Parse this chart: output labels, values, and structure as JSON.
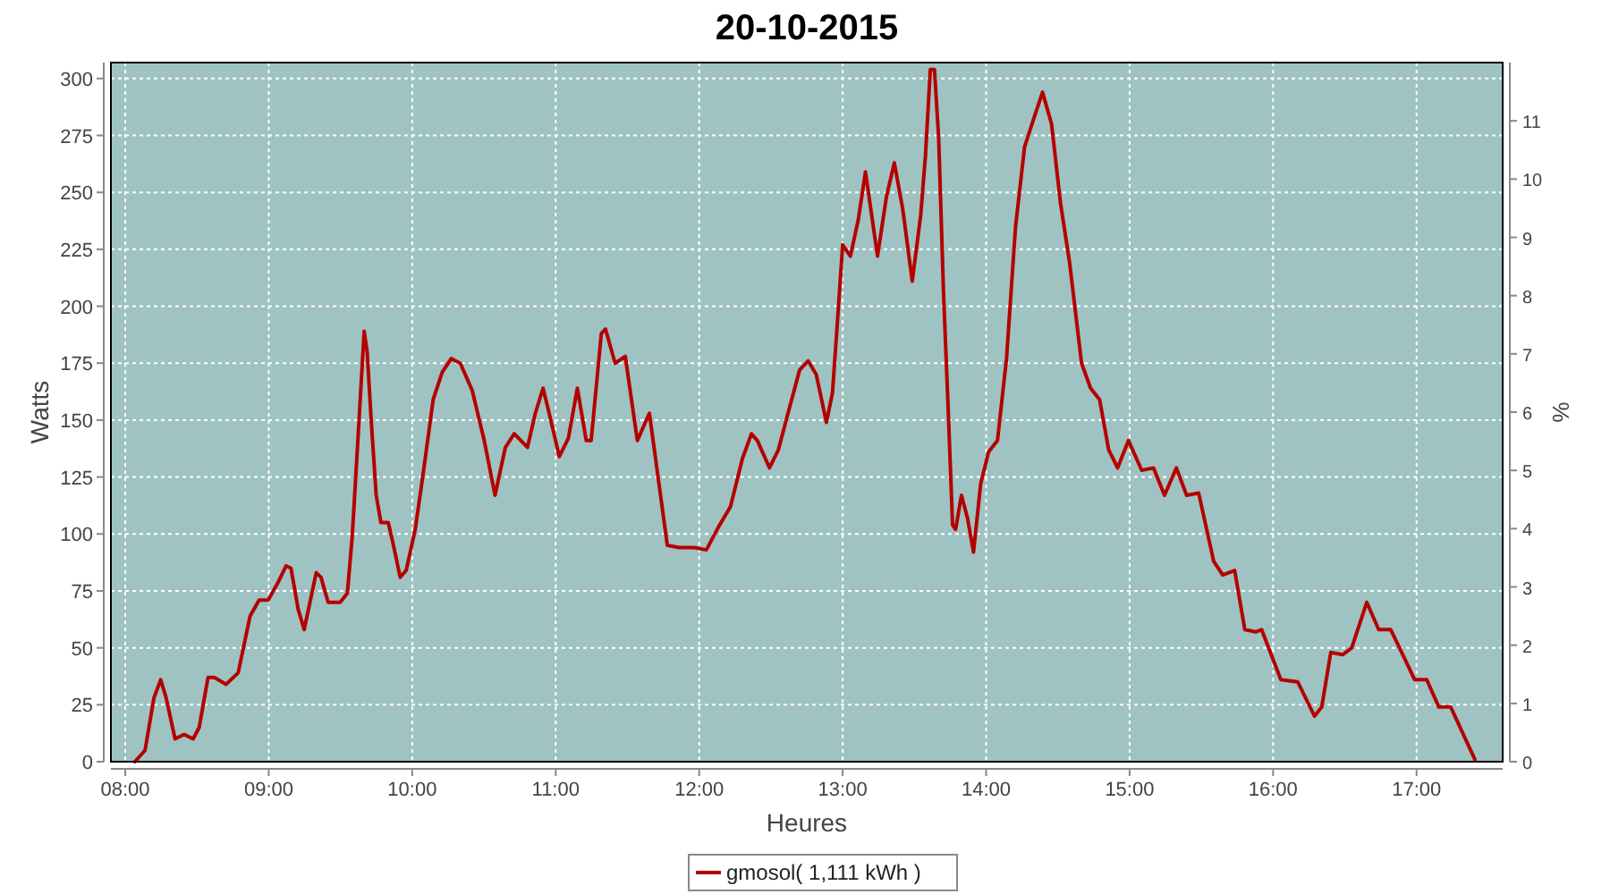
{
  "chart_data": {
    "type": "line",
    "title": "20-10-2015",
    "xlabel": "Heures",
    "ylabel": "Watts",
    "y2label": "%",
    "xlim": [
      7.9,
      17.6
    ],
    "xticks": [
      {
        "value": 8,
        "label": "08:00"
      },
      {
        "value": 9,
        "label": "09:00"
      },
      {
        "value": 10,
        "label": "10:00"
      },
      {
        "value": 11,
        "label": "11:00"
      },
      {
        "value": 12,
        "label": "12:00"
      },
      {
        "value": 13,
        "label": "13:00"
      },
      {
        "value": 14,
        "label": "14:00"
      },
      {
        "value": 15,
        "label": "15:00"
      },
      {
        "value": 16,
        "label": "16:00"
      },
      {
        "value": 17,
        "label": "17:00"
      }
    ],
    "ylim": [
      0,
      307
    ],
    "yticks": [
      0,
      25,
      50,
      75,
      100,
      125,
      150,
      175,
      200,
      225,
      250,
      275,
      300
    ],
    "y2lim": [
      0,
      12
    ],
    "y2ticks": [
      0,
      1,
      2,
      3,
      4,
      5,
      6,
      7,
      8,
      9,
      10,
      11
    ],
    "grid": true,
    "legend": "bottom",
    "line_style": "solid",
    "series": [
      {
        "name": "gmosol( 1,111 kWh )",
        "color": "#b50000",
        "x": [
          8.067,
          8.138,
          8.2,
          8.247,
          8.285,
          8.347,
          8.41,
          8.473,
          8.515,
          8.577,
          8.62,
          8.703,
          8.787,
          8.87,
          8.933,
          8.996,
          9.059,
          9.121,
          9.155,
          9.205,
          9.247,
          9.331,
          9.364,
          9.414,
          9.498,
          9.548,
          9.582,
          9.623,
          9.665,
          9.686,
          9.715,
          9.749,
          9.782,
          9.833,
          9.866,
          9.916,
          9.958,
          10.021,
          10.084,
          10.146,
          10.209,
          10.272,
          10.335,
          10.418,
          10.502,
          10.577,
          10.649,
          10.711,
          10.803,
          10.858,
          10.912,
          10.962,
          11.025,
          11.088,
          11.151,
          11.213,
          11.247,
          11.318,
          11.347,
          11.414,
          11.485,
          11.569,
          11.653,
          11.707,
          11.778,
          11.862,
          11.967,
          12.05,
          12.134,
          12.218,
          12.301,
          12.364,
          12.406,
          12.49,
          12.552,
          12.615,
          12.7,
          12.76,
          12.816,
          12.887,
          12.929,
          12.958,
          13.0,
          13.054,
          13.109,
          13.159,
          13.243,
          13.305,
          13.36,
          13.418,
          13.485,
          13.544,
          13.577,
          13.611,
          13.64,
          13.669,
          13.703,
          13.736,
          13.766,
          13.787,
          13.828,
          13.87,
          13.912,
          13.962,
          14.017,
          14.079,
          14.142,
          14.205,
          14.268,
          14.33,
          14.393,
          14.456,
          14.519,
          14.582,
          14.665,
          14.728,
          14.791,
          14.854,
          14.916,
          14.992,
          15.084,
          15.167,
          15.243,
          15.326,
          15.397,
          15.481,
          15.586,
          15.649,
          15.732,
          15.803,
          15.879,
          15.92,
          16.054,
          16.172,
          16.289,
          16.339,
          16.402,
          16.485,
          16.548,
          16.653,
          16.736,
          16.82,
          16.904,
          16.987,
          17.071,
          17.155,
          17.238,
          17.406
        ],
        "values": [
          0,
          5,
          28,
          36,
          28,
          10,
          12,
          10,
          15,
          37,
          37,
          34,
          39,
          64,
          71,
          71,
          78,
          86,
          85,
          67,
          58,
          83,
          81,
          70,
          70,
          74,
          99,
          143,
          189,
          180,
          149,
          117,
          105,
          105,
          96,
          81,
          84,
          102,
          130,
          159,
          171,
          177,
          175,
          163,
          141,
          117,
          138,
          144,
          138,
          153,
          164,
          151,
          134,
          142,
          164,
          141,
          141,
          188,
          190,
          175,
          178,
          141,
          153,
          128,
          95,
          94,
          94,
          93,
          103,
          112,
          133,
          144,
          141,
          129,
          137,
          152,
          172,
          176,
          170,
          149,
          162,
          188,
          227,
          222,
          238,
          259,
          222,
          248,
          263,
          243,
          211,
          240,
          266,
          304,
          304,
          274,
          206,
          154,
          104,
          102,
          117,
          107,
          92,
          122,
          136,
          141,
          177,
          235,
          270,
          282,
          294,
          280,
          245,
          219,
          175,
          164,
          159,
          137,
          129,
          141,
          128,
          129,
          117,
          129,
          117,
          118,
          88,
          82,
          84,
          58,
          57,
          58,
          36,
          35,
          20,
          24,
          48,
          47,
          50,
          70,
          58,
          58,
          47,
          36,
          36,
          24,
          24,
          1
        ]
      }
    ]
  }
}
